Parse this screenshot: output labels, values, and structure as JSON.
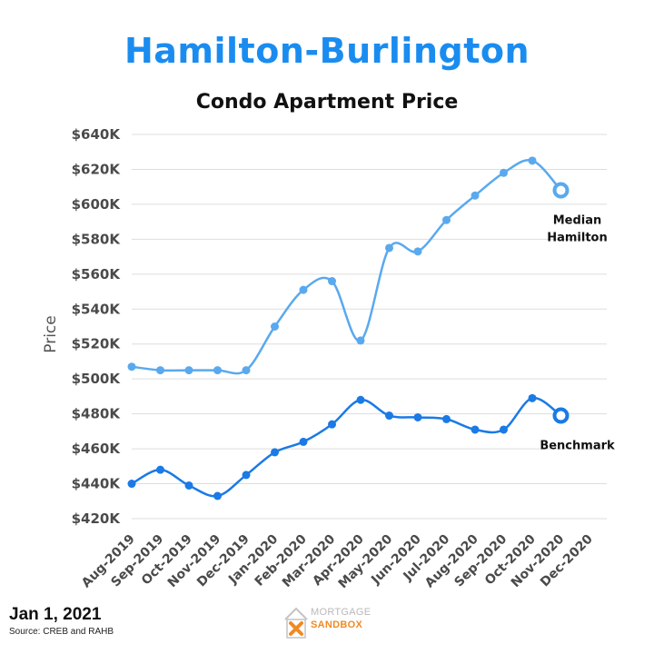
{
  "header": {
    "title": "Hamilton-Burlington"
  },
  "footer": {
    "date": "Jan 1, 2021",
    "source": "Source: CREB and RAHB",
    "logo_line1": "MORTGAGE",
    "logo_line2": "SANDBOX"
  },
  "colors": {
    "title": "#1a8cf0",
    "median_series": "#5aa9ee",
    "benchmark_series": "#1a7ae6",
    "grid": "#dddddd",
    "logo_orange": "#f08a24"
  },
  "chart_data": {
    "type": "line",
    "title": "Condo Apartment Price",
    "xlabel": "",
    "ylabel": "Price",
    "categories": [
      "Aug-2019",
      "Sep-2019",
      "Oct-2019",
      "Nov-2019",
      "Dec-2019",
      "Jan-2020",
      "Feb-2020",
      "Mar-2020",
      "Apr-2020",
      "May-2020",
      "Jun-2020",
      "Jul-2020",
      "Aug-2020",
      "Sep-2020",
      "Oct-2020",
      "Nov-2020",
      "Dec-2020"
    ],
    "yticks": [
      420000,
      440000,
      460000,
      480000,
      500000,
      520000,
      540000,
      560000,
      580000,
      600000,
      620000,
      640000
    ],
    "ytick_labels": [
      "$420K",
      "$440K",
      "$460K",
      "$480K",
      "$500K",
      "$520K",
      "$540K",
      "$560K",
      "$580K",
      "$600K",
      "$620K",
      "$640K"
    ],
    "ylim": [
      410000,
      645000
    ],
    "grid": true,
    "series": [
      {
        "name": "Median Hamilton",
        "label_lines": [
          "Median",
          "Hamilton"
        ],
        "values": [
          507000,
          505000,
          505000,
          505000,
          505000,
          530000,
          551000,
          556000,
          522000,
          575000,
          573000,
          591000,
          605000,
          618000,
          625000,
          608000,
          null
        ]
      },
      {
        "name": "Benchmark",
        "label_lines": [
          "Benchmark"
        ],
        "values": [
          440000,
          448000,
          439000,
          433000,
          445000,
          458000,
          464000,
          474000,
          488000,
          479000,
          478000,
          477000,
          471000,
          471000,
          489000,
          479000,
          null
        ]
      }
    ]
  }
}
